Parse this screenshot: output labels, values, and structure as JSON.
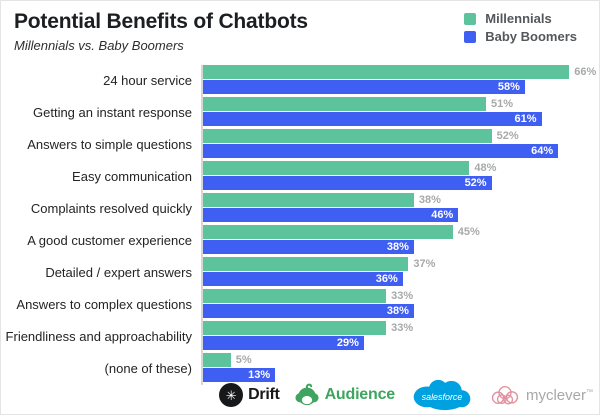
{
  "header": {
    "title": "Potential Benefits of Chatbots",
    "subtitle": "Millennials vs. Baby Boomers"
  },
  "legend": [
    {
      "label": "Millennials",
      "color": "#5dc39c"
    },
    {
      "label": "Baby Boomers",
      "color": "#3f5ef2"
    }
  ],
  "chart_data": {
    "type": "bar",
    "orientation": "horizontal",
    "title": "Potential Benefits of Chatbots",
    "subtitle": "Millennials vs. Baby Boomers",
    "categories": [
      "24 hour service",
      "Getting an instant response",
      "Answers to simple questions",
      "Easy communication",
      "Complaints resolved quickly",
      "A good customer experience",
      "Detailed / expert answers",
      "Answers to complex questions",
      "Friendliness and approachability",
      "(none of these)"
    ],
    "series": [
      {
        "name": "Millennials",
        "color": "#5dc39c",
        "values": [
          66,
          51,
          52,
          48,
          38,
          45,
          37,
          33,
          33,
          5
        ]
      },
      {
        "name": "Baby Boomers",
        "color": "#3f5ef2",
        "values": [
          58,
          61,
          64,
          52,
          46,
          38,
          36,
          38,
          29,
          13
        ]
      }
    ],
    "value_suffix": "%",
    "xlim": [
      0,
      70
    ],
    "grid": false,
    "legend_position": "top-right",
    "value_label_style": {
      "millennials": "gray text outside bar end",
      "baby_boomers": "white bold text inside bar end"
    }
  },
  "footer_logos": [
    {
      "name": "drift",
      "label": "Drift"
    },
    {
      "name": "audience",
      "label": "Audience"
    },
    {
      "name": "salesforce",
      "label": "salesforce"
    },
    {
      "name": "myclever",
      "label": "myclever",
      "trademark": "™"
    }
  ],
  "colors": {
    "millennials_green": "#5dc39c",
    "baby_boomers_blue": "#3f5ef2",
    "value_label_gray": "#a7a9ab",
    "axis_line": "#d5d7d9",
    "salesforce_blue": "#00a1e0",
    "audience_green": "#3fa45f",
    "myclever_pink": "#e291a0",
    "drift_black": "#17181a"
  }
}
